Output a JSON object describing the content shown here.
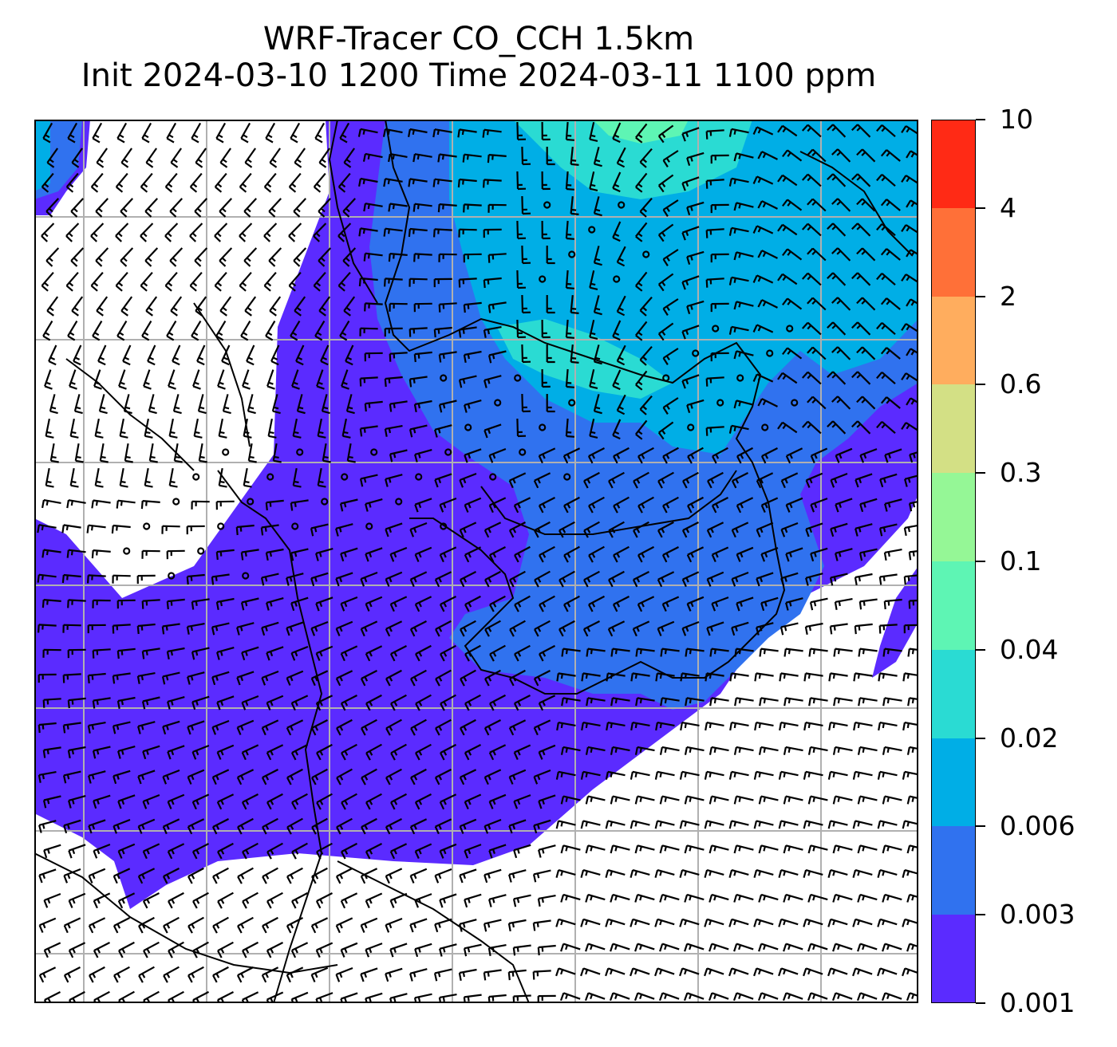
{
  "title": {
    "line1": "WRF-Tracer CO_CCH 1.5km",
    "line2": "Init 2024-03-10 1200 Time 2024-03-11 1100 ppm"
  },
  "colorbar": {
    "levels": [
      "0.001",
      "0.003",
      "0.006",
      "0.02",
      "0.04",
      "0.1",
      "0.3",
      "0.6",
      "2",
      "4",
      "10"
    ],
    "colors": [
      "#5b2bff",
      "#3072ef",
      "#00aee6",
      "#2adbd3",
      "#5ef5b4",
      "#95f796",
      "#d3e085",
      "#ffad5e",
      "#ff7038",
      "#ff2a15"
    ]
  },
  "map": {
    "colors": {
      "background": "#ffffff",
      "grid": "#b0b0b0",
      "coast": "#000000",
      "barb": "#000000"
    },
    "grid_rows": 7,
    "grid_cols": 7
  }
}
